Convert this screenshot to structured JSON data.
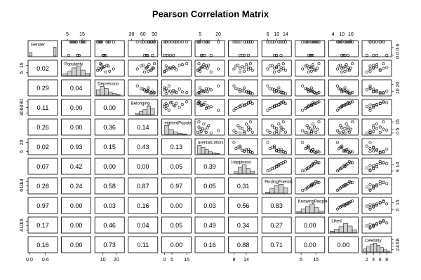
{
  "chart_data": {
    "type": "pairs",
    "title": "Pearson Correlation Matrix",
    "variables": [
      {
        "name": "Gender",
        "lim": [
          0,
          1
        ],
        "ticks": [
          {
            "value": 0,
            "label": "0.0"
          },
          0.6
        ],
        "bins": [
          0,
          0.1,
          0.9,
          1
        ],
        "counts": [
          12,
          0,
          30
        ],
        "samples": [
          0,
          1,
          1,
          0,
          1,
          1,
          1,
          0,
          1,
          1,
          0,
          1,
          1,
          1
        ]
      },
      {
        "name": "Popularity",
        "lim": [
          2,
          20
        ],
        "ticks": [
          5,
          15
        ],
        "bins": [
          2,
          5,
          8,
          11,
          14,
          17,
          20
        ],
        "counts": [
          3,
          8,
          14,
          16,
          10,
          4
        ],
        "samples": [
          12,
          9,
          14,
          6,
          11,
          16,
          10,
          13,
          8,
          15,
          12,
          7,
          11,
          17
        ]
      },
      {
        "name": "Depression",
        "lim": [
          5,
          25
        ],
        "ticks": [
          10,
          20
        ],
        "bins": [
          5,
          8,
          11,
          14,
          17,
          20,
          23
        ],
        "counts": [
          10,
          16,
          12,
          6,
          3,
          1
        ],
        "samples": [
          10,
          8,
          14,
          12,
          7,
          9,
          18,
          11,
          6,
          13,
          10,
          15,
          9,
          8
        ]
      },
      {
        "name": "Belonging",
        "lim": [
          25,
          95
        ],
        "ticks": [
          30,
          60,
          90
        ],
        "bins": [
          40,
          50,
          60,
          70,
          80,
          90
        ],
        "counts": [
          2,
          5,
          8,
          14,
          10
        ],
        "samples": [
          70,
          82,
          55,
          64,
          88,
          76,
          45,
          72,
          80,
          60,
          85,
          74,
          68,
          90
        ]
      },
      {
        "name": "eightedPopula",
        "lim": [
          -1,
          17
        ],
        "ticks": [
          0,
          5,
          15
        ],
        "bins": [
          0,
          3,
          6,
          9,
          12,
          15
        ],
        "counts": [
          18,
          10,
          5,
          2,
          1
        ],
        "samples": [
          2,
          8,
          1,
          0,
          5,
          12,
          3,
          6,
          1,
          10,
          4,
          0,
          7,
          15
        ]
      },
      {
        "name": "arentalCriticis",
        "lim": [
          2,
          24
        ],
        "ticks": [
          5,
          20
        ],
        "bins": [
          3,
          6,
          9,
          12,
          15,
          18,
          21
        ],
        "counts": [
          16,
          12,
          8,
          4,
          2,
          1
        ],
        "samples": [
          6,
          4,
          10,
          14,
          5,
          8,
          20,
          7,
          3,
          12,
          9,
          5,
          11,
          4
        ]
      },
      {
        "name": "Happiness",
        "lim": [
          6,
          19
        ],
        "ticks": [
          8,
          14
        ],
        "bins": [
          8,
          10,
          12,
          14,
          16,
          18
        ],
        "counts": [
          3,
          10,
          14,
          8,
          4
        ],
        "samples": [
          13,
          15,
          9,
          11,
          16,
          14,
          8,
          12,
          17,
          10,
          15,
          13,
          11,
          16
        ]
      },
      {
        "name": "FindingFriends",
        "lim": [
          4,
          16
        ],
        "ticks": [
          6,
          10,
          14
        ],
        "bins": [
          5,
          7,
          9,
          11,
          13,
          15
        ],
        "counts": [
          2,
          8,
          14,
          16,
          10
        ],
        "samples": [
          10,
          12,
          7,
          9,
          13,
          11,
          6,
          10,
          14,
          8,
          12,
          11,
          9,
          13
        ]
      },
      {
        "name": "KnowingPeople",
        "lim": [
          2,
          20
        ],
        "ticks": [
          5,
          15
        ],
        "bins": [
          2,
          5,
          8,
          11,
          14,
          17,
          20
        ],
        "counts": [
          2,
          6,
          10,
          14,
          8,
          3
        ],
        "samples": [
          12,
          14,
          8,
          10,
          16,
          13,
          6,
          11,
          15,
          9,
          13,
          12,
          10,
          17
        ]
      },
      {
        "name": "Liked",
        "lim": [
          2,
          20
        ],
        "ticks": [
          4,
          10,
          16
        ],
        "bins": [
          2,
          5,
          8,
          11,
          14,
          17,
          20
        ],
        "counts": [
          2,
          5,
          9,
          14,
          10,
          4
        ],
        "samples": [
          11,
          14,
          8,
          10,
          16,
          13,
          7,
          12,
          15,
          9,
          14,
          12,
          10,
          17
        ]
      },
      {
        "name": "Celebrity",
        "lim": [
          1,
          9
        ],
        "ticks": [
          2,
          4,
          6,
          8
        ],
        "bins": [
          1,
          2,
          3,
          4,
          5,
          6,
          7,
          8,
          9
        ],
        "counts": [
          4,
          8,
          10,
          12,
          9,
          6,
          3,
          1
        ],
        "samples": [
          4,
          6,
          3,
          2,
          7,
          5,
          3,
          5,
          6,
          4,
          8,
          3,
          4,
          7
        ]
      }
    ],
    "lower": {
      "values": [
        [],
        [
          0.02
        ],
        [
          0.29,
          0.04
        ],
        [
          0.11,
          0,
          0
        ],
        [
          0.26,
          0,
          0.36,
          0.14
        ],
        [
          0.02,
          0.93,
          0.15,
          0.43,
          0.13
        ],
        [
          0.07,
          0.42,
          0,
          0,
          0.05,
          0.39
        ],
        [
          0.28,
          0.24,
          0.58,
          0.87,
          0.97,
          0.05,
          0.31
        ],
        [
          0.97,
          0,
          0.03,
          0.16,
          0,
          0.03,
          0.56,
          0.83
        ],
        [
          0.17,
          0,
          0.46,
          0.04,
          0.05,
          0.49,
          0.34,
          0.27,
          0
        ],
        [
          0.16,
          0,
          0.73,
          0.11,
          0,
          0.16,
          0.88,
          0.71,
          0,
          0
        ]
      ],
      "value_labels": [
        [],
        [
          "0.02"
        ],
        [
          "0.29",
          "0.04"
        ],
        [
          "0.11",
          "0.00",
          "0.00"
        ],
        [
          "0.26",
          "0.00",
          "0.36",
          "0.14"
        ],
        [
          "0.02",
          "0.93",
          "0.15",
          "0.43",
          "0.13"
        ],
        [
          "0.07",
          "0.42",
          "0.00",
          "0.00",
          "0.05",
          "0.39"
        ],
        [
          "0.28",
          "0.24",
          "0.58",
          "0.87",
          "0.97",
          "0.05",
          "0.31"
        ],
        [
          "0.97",
          "0.00",
          "0.03",
          "0.16",
          "0.00",
          "0.03",
          "0.56",
          "0.83"
        ],
        [
          "0.17",
          "0.00",
          "0.46",
          "0.04",
          "0.05",
          "0.49",
          "0.34",
          "0.27",
          "0.00"
        ],
        [
          "0.16",
          "0.00",
          "0.73",
          "0.11",
          "0.00",
          "0.16",
          "0.88",
          "0.71",
          "0.00",
          "0.00"
        ]
      ]
    }
  }
}
